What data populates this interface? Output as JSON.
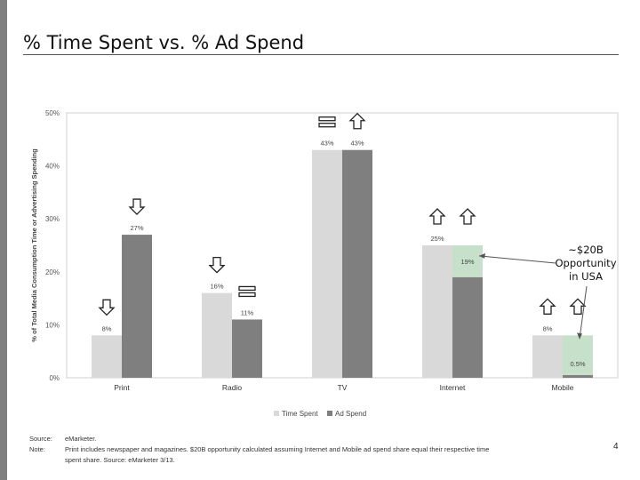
{
  "slide": {
    "title": "% Time Spent vs. % Ad Spend",
    "page_number": "4"
  },
  "callout": {
    "line1": "~$20B",
    "line2": "Opportunity",
    "line3": "in USA"
  },
  "footnotes": {
    "source_label": "Source:",
    "source_text": "eMarketer.",
    "note_label": "Note:",
    "note_text": "Print includes newspaper and magazines. $20B opportunity calculated assuming Internet and Mobile ad spend share equal their respective time spent share. Source: eMarketer 3/13."
  },
  "colors": {
    "time_spent": "#d9d9d9",
    "ad_spend": "#7f7f7f",
    "opportunity": "#c6e0c9",
    "axis_text": "#555555"
  },
  "chart_data": {
    "type": "bar",
    "title": "",
    "ylabel": "% of Total Media Consumption Time or Advertising Spending",
    "xlabel": "",
    "ylim": [
      0,
      50
    ],
    "y_ticks": [
      "0%",
      "10%",
      "20%",
      "30%",
      "40%",
      "50%"
    ],
    "y_tick_values": [
      0,
      10,
      20,
      30,
      40,
      50
    ],
    "categories": [
      "Print",
      "Radio",
      "TV",
      "Internet",
      "Mobile"
    ],
    "legend_position": "bottom",
    "series": [
      {
        "name": "Time Spent",
        "values": [
          8,
          16,
          43,
          25,
          8
        ],
        "labels": [
          "8%",
          "16%",
          "43%",
          "25%",
          "8%"
        ]
      },
      {
        "name": "Ad Spend",
        "values": [
          27,
          11,
          43,
          19,
          0.5
        ],
        "labels": [
          "27%",
          "11%",
          "43%",
          "19%",
          "0.5%"
        ]
      }
    ],
    "opportunity_gap": {
      "categories": [
        "Internet",
        "Mobile"
      ],
      "from": [
        19,
        0.5
      ],
      "to": [
        25,
        8
      ]
    },
    "trend_icons": [
      {
        "category": "Print",
        "series": "Time Spent",
        "icon": "arrow-down-icon"
      },
      {
        "category": "Print",
        "series": "Ad Spend",
        "icon": "arrow-down-icon"
      },
      {
        "category": "Radio",
        "series": "Time Spent",
        "icon": "arrow-down-icon"
      },
      {
        "category": "Radio",
        "series": "Ad Spend",
        "icon": "equal-icon"
      },
      {
        "category": "TV",
        "series": "Time Spent",
        "icon": "equal-icon"
      },
      {
        "category": "TV",
        "series": "Ad Spend",
        "icon": "arrow-up-icon"
      },
      {
        "category": "Internet",
        "series": "Time Spent",
        "icon": "arrow-up-icon"
      },
      {
        "category": "Internet",
        "series": "Ad Spend",
        "icon": "arrow-up-icon"
      },
      {
        "category": "Mobile",
        "series": "Time Spent",
        "icon": "arrow-up-icon"
      },
      {
        "category": "Mobile",
        "series": "Ad Spend",
        "icon": "arrow-up-icon"
      }
    ]
  }
}
